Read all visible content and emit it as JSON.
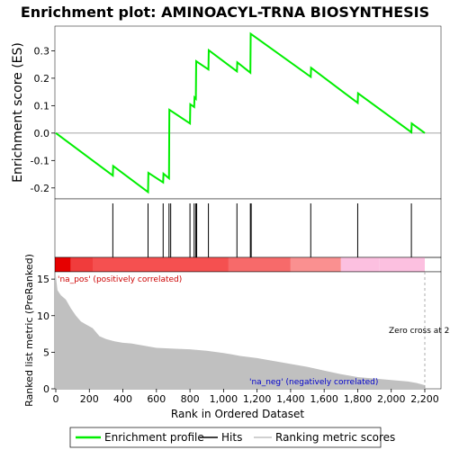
{
  "chart_data": [
    {
      "type": "line",
      "title": "Enrichment plot: AMINOACYL-TRNA BIOSYNTHESIS",
      "ylabel": "Enrichment score (ES)",
      "ylim": [
        -0.24,
        0.39
      ],
      "xlim": [
        0,
        2250
      ],
      "yticks": [
        -0.2,
        -0.1,
        0.0,
        0.1,
        0.2,
        0.3
      ],
      "ytick_labels": [
        "-0.2",
        "-0.1",
        "0.0",
        "0.1",
        "0.2",
        "0.3"
      ],
      "grid": false,
      "series": [
        {
          "name": "Enrichment profile",
          "color": "#00ee00",
          "x": [
            0,
            340,
            342,
            550,
            552,
            640,
            642,
            675,
            677,
            800,
            802,
            825,
            827,
            835,
            837,
            910,
            912,
            1080,
            1082,
            1160,
            1162,
            1520,
            1522,
            1800,
            1802,
            2120,
            2122,
            2200
          ],
          "y": [
            0.0,
            -0.155,
            -0.12,
            -0.215,
            -0.145,
            -0.18,
            -0.148,
            -0.165,
            0.085,
            0.035,
            0.105,
            0.095,
            0.13,
            0.125,
            0.262,
            0.232,
            0.302,
            0.225,
            0.258,
            0.22,
            0.362,
            0.205,
            0.238,
            0.11,
            0.145,
            0.003,
            0.035,
            0.0
          ]
        }
      ],
      "hits": [
        340,
        550,
        640,
        675,
        685,
        800,
        825,
        835,
        840,
        910,
        1080,
        1160,
        1165,
        1520,
        1800,
        2120
      ]
    },
    {
      "type": "area",
      "ylabel": "Ranked list metric (PreRanked)",
      "xlabel": "Rank in Ordered Dataset",
      "xlim": [
        0,
        2250
      ],
      "ylim": [
        0,
        16
      ],
      "xticks": [
        0,
        200,
        400,
        600,
        800,
        1000,
        1200,
        1400,
        1600,
        1800,
        2000,
        2200
      ],
      "xtick_labels": [
        "0",
        "200",
        "400",
        "600",
        "800",
        "1,000",
        "1,200",
        "1,400",
        "1,600",
        "1,800",
        "2,000",
        "2,200"
      ],
      "yticks": [
        0,
        5,
        10,
        15
      ],
      "ytick_labels": [
        "0",
        "5",
        "10",
        "15"
      ],
      "series": [
        {
          "name": "Ranking metric scores",
          "color": "#c0c0c0",
          "x": [
            0,
            10,
            30,
            60,
            90,
            120,
            150,
            180,
            220,
            260,
            300,
            350,
            400,
            450,
            500,
            550,
            600,
            700,
            800,
            900,
            1000,
            1100,
            1200,
            1300,
            1400,
            1500,
            1600,
            1700,
            1800,
            1900,
            2000,
            2100,
            2150,
            2200
          ],
          "y": [
            15.5,
            13.5,
            12.8,
            12.2,
            11.0,
            10.0,
            9.2,
            8.8,
            8.3,
            7.2,
            6.8,
            6.5,
            6.3,
            6.2,
            6.0,
            5.8,
            5.6,
            5.5,
            5.4,
            5.2,
            4.9,
            4.5,
            4.2,
            3.8,
            3.4,
            3.0,
            2.5,
            2.0,
            1.6,
            1.4,
            1.2,
            1.0,
            0.8,
            0.5
          ]
        }
      ],
      "zero_cross": 2200,
      "annotations": {
        "pos": "'na_pos' (positively correlated)",
        "neg": "'na_neg' (negatively correlated)",
        "zero": "Zero cross at 2200"
      }
    }
  ],
  "legend": {
    "items": [
      {
        "label": "Enrichment profile",
        "color": "#00ee00"
      },
      {
        "label": "Hits",
        "color": "#000000"
      },
      {
        "label": "Ranking metric scores",
        "color": "#c0c0c0"
      }
    ]
  },
  "heatbar": {
    "colors": [
      "#e60000",
      "#f03c3c",
      "#f55050",
      "#f76a6a",
      "#fa9090",
      "#fcc0e0"
    ],
    "breaks": [
      0,
      90,
      220,
      1030,
      1400,
      1700,
      1930
    ]
  }
}
